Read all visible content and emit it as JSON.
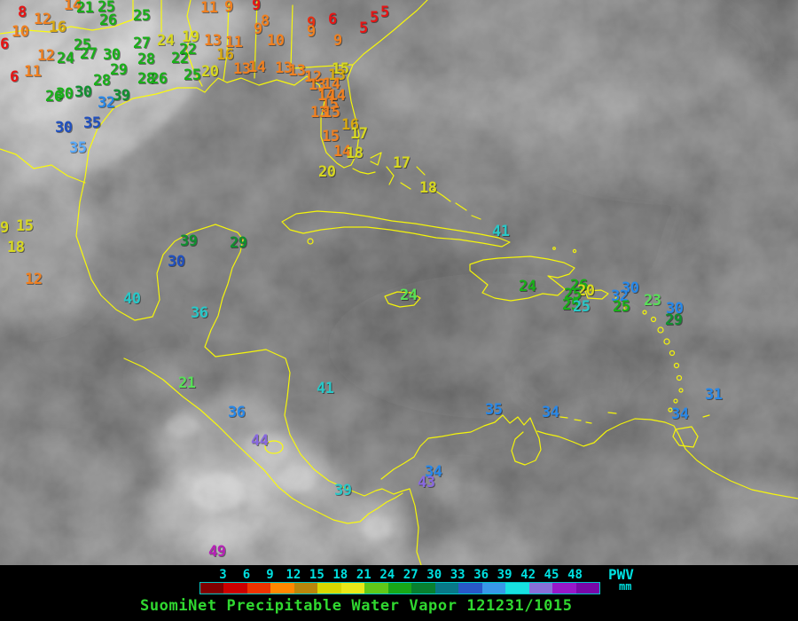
{
  "map": {
    "coast_color": "#ffff00",
    "stations": [
      [
        "8",
        20,
        8,
        "#e81414"
      ],
      [
        "12",
        38,
        16,
        "#f08020"
      ],
      [
        "10",
        13,
        30,
        "#f08020"
      ],
      [
        "16",
        55,
        25,
        "#d8a810"
      ],
      [
        "6",
        0,
        44,
        "#e81414"
      ],
      [
        "12",
        42,
        57,
        "#f08020"
      ],
      [
        "24",
        64,
        60,
        "#18b018"
      ],
      [
        "11",
        27,
        75,
        "#f08020"
      ],
      [
        "6",
        11,
        81,
        "#e81414"
      ],
      [
        "14",
        72,
        0,
        "#f08020"
      ],
      [
        "21",
        86,
        3,
        "#18b018"
      ],
      [
        "25",
        110,
        2,
        "#18b018"
      ],
      [
        "26",
        112,
        17,
        "#18b018"
      ],
      [
        "25",
        150,
        12,
        "#18b018"
      ],
      [
        "25",
        83,
        45,
        "#18b018"
      ],
      [
        "27",
        90,
        55,
        "#18b018"
      ],
      [
        "30",
        116,
        56,
        "#18b018"
      ],
      [
        "27",
        150,
        43,
        "#18b018"
      ],
      [
        "28",
        155,
        61,
        "#18b018"
      ],
      [
        "24",
        177,
        40,
        "#d8d820"
      ],
      [
        "19",
        205,
        36,
        "#d8d820"
      ],
      [
        "22",
        202,
        50,
        "#18b018"
      ],
      [
        "22",
        193,
        60,
        "#18b018"
      ],
      [
        "16",
        244,
        56,
        "#d8a810"
      ],
      [
        "13",
        230,
        40,
        "#f08020"
      ],
      [
        "11",
        254,
        42,
        "#f08020"
      ],
      [
        "29",
        124,
        73,
        "#18b018"
      ],
      [
        "28",
        105,
        85,
        "#18b018"
      ],
      [
        "28",
        155,
        83,
        "#18b018"
      ],
      [
        "26",
        169,
        83,
        "#18b018"
      ],
      [
        "25",
        207,
        79,
        "#18b018"
      ],
      [
        "20",
        227,
        75,
        "#d8d820"
      ],
      [
        "26",
        51,
        103,
        "#18b018"
      ],
      [
        "30",
        63,
        100,
        "#18b018"
      ],
      [
        "30",
        84,
        98,
        "#109030"
      ],
      [
        "32",
        110,
        110,
        "#2888e8"
      ],
      [
        "39",
        127,
        102,
        "#109030"
      ],
      [
        "30",
        62,
        138,
        "#2050c0"
      ],
      [
        "35",
        94,
        133,
        "#2050c0"
      ],
      [
        "35",
        78,
        161,
        "#58a8f8"
      ],
      [
        "11",
        226,
        3,
        "#f08020"
      ],
      [
        "9",
        253,
        2,
        "#f08020"
      ],
      [
        "9",
        284,
        0,
        "#e81414"
      ],
      [
        "8",
        294,
        18,
        "#f08020"
      ],
      [
        "9",
        286,
        27,
        "#f08020"
      ],
      [
        "10",
        301,
        40,
        "#f08020"
      ],
      [
        "9",
        346,
        20,
        "#e83014"
      ],
      [
        "6",
        370,
        16,
        "#e81414"
      ],
      [
        "9",
        346,
        30,
        "#f08020"
      ],
      [
        "9",
        376,
        40,
        "#f08020"
      ],
      [
        "5",
        405,
        26,
        "#e81414"
      ],
      [
        "5",
        417,
        14,
        "#e81414"
      ],
      [
        "5",
        429,
        8,
        "#e81414"
      ],
      [
        "13",
        263,
        72,
        "#f08020"
      ],
      [
        "14",
        280,
        70,
        "#f08020"
      ],
      [
        "13",
        310,
        71,
        "#f08020"
      ],
      [
        "13",
        325,
        74,
        "#f08020"
      ],
      [
        "15",
        374,
        72,
        "#d8d820"
      ],
      [
        "13",
        370,
        79,
        "#d8a810"
      ],
      [
        "12",
        343,
        81,
        "#f08020"
      ],
      [
        "13",
        348,
        90,
        "#f08020"
      ],
      [
        "14",
        364,
        89,
        "#f08020"
      ],
      [
        "14",
        358,
        102,
        "#f08020"
      ],
      [
        "14",
        370,
        102,
        "#f08020"
      ],
      [
        "15",
        362,
        112,
        "#f08020"
      ],
      [
        "13",
        350,
        121,
        "#f08020"
      ],
      [
        "15",
        364,
        121,
        "#f08020"
      ],
      [
        "16",
        385,
        135,
        "#d8a810"
      ],
      [
        "17",
        395,
        145,
        "#d8d820"
      ],
      [
        "15",
        363,
        148,
        "#f08020"
      ],
      [
        "14",
        376,
        165,
        "#f08020"
      ],
      [
        "18",
        390,
        167,
        "#d8d820"
      ],
      [
        "20",
        359,
        188,
        "#d8d820"
      ],
      [
        "17",
        443,
        178,
        "#d8d820"
      ],
      [
        "18",
        473,
        206,
        "#d8d820"
      ],
      [
        "9",
        0,
        251,
        "#d8d820"
      ],
      [
        "15",
        18,
        249,
        "#d8d820"
      ],
      [
        "18",
        8,
        273,
        "#d8d820"
      ],
      [
        "12",
        28,
        309,
        "#f08020"
      ],
      [
        "39",
        203,
        266,
        "#109030"
      ],
      [
        "29",
        259,
        268,
        "#109030"
      ],
      [
        "30",
        189,
        289,
        "#2050c0"
      ],
      [
        "40",
        139,
        331,
        "#28c8c8"
      ],
      [
        "36",
        215,
        347,
        "#28c8c8"
      ],
      [
        "41",
        555,
        255,
        "#28c8c8"
      ],
      [
        "24",
        585,
        317,
        "#18b018"
      ],
      [
        "24",
        451,
        327,
        "#58e058"
      ],
      [
        "26",
        643,
        316,
        "#18b018"
      ],
      [
        "20",
        651,
        322,
        "#d8d820"
      ],
      [
        "25",
        636,
        326,
        "#18b018"
      ],
      [
        "25",
        634,
        338,
        "#18b018"
      ],
      [
        "25",
        646,
        340,
        "#28c8c8"
      ],
      [
        "30",
        701,
        319,
        "#2888e8"
      ],
      [
        "32",
        689,
        328,
        "#2888e8"
      ],
      [
        "25",
        691,
        340,
        "#18b018"
      ],
      [
        "23",
        726,
        333,
        "#58e058"
      ],
      [
        "30",
        751,
        342,
        "#2888e8"
      ],
      [
        "29",
        750,
        355,
        "#109030"
      ],
      [
        "31",
        795,
        439,
        "#2888e8"
      ],
      [
        "34",
        757,
        461,
        "#2888e8"
      ],
      [
        "21",
        201,
        426,
        "#58e058"
      ],
      [
        "36",
        257,
        459,
        "#2888e8"
      ],
      [
        "44",
        283,
        491,
        "#8868e0"
      ],
      [
        "41",
        357,
        432,
        "#28c8c8"
      ],
      [
        "39",
        377,
        547,
        "#28c8c8"
      ],
      [
        "35",
        547,
        456,
        "#2888e8"
      ],
      [
        "34",
        611,
        459,
        "#2888e8"
      ],
      [
        "34",
        479,
        526,
        "#2888e8"
      ],
      [
        "43",
        471,
        538,
        "#8868e0"
      ],
      [
        "49",
        235,
        616,
        "#b820b8"
      ]
    ]
  },
  "legend": {
    "ticks": [
      "3",
      "6",
      "9",
      "12",
      "15",
      "18",
      "21",
      "24",
      "27",
      "30",
      "33",
      "36",
      "39",
      "42",
      "45",
      "48"
    ],
    "tick_color": "#00e0e0",
    "bar_border_color": "#00c8c8",
    "bar_colors": [
      "#800000",
      "#cc0000",
      "#ee3300",
      "#ff8800",
      "#b8860b",
      "#d8d800",
      "#e8e818",
      "#60c818",
      "#18a818",
      "#088030",
      "#087888",
      "#2858c8",
      "#3898e8",
      "#18e0e0",
      "#8870d8",
      "#9818c8",
      "#7808a8"
    ],
    "unit_label": "PWV",
    "unit_sub": "mm",
    "unit_color": "#00e0e0"
  },
  "caption": {
    "text": "SuomiNet Precipitable Water Vapor 121231/1015",
    "color": "#30d830"
  }
}
